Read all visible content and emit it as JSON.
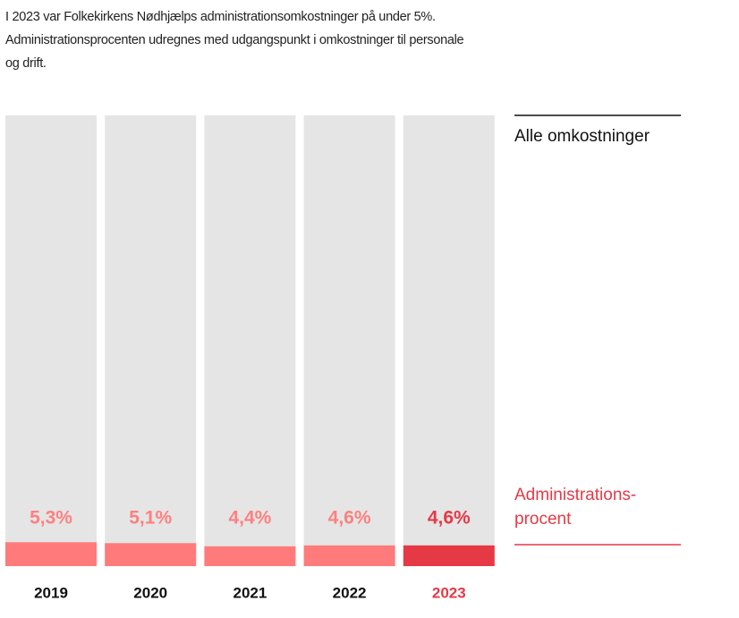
{
  "chart_data": {
    "type": "bar",
    "title": "I 2023 var Folkekirkens Nødhjælps administrationsomkostninger på under 5%. Administrationsprocenten udregnes med udgangspunkt i omkostninger til personale og drift.",
    "categories": [
      "2019",
      "2020",
      "2021",
      "2022",
      "2023"
    ],
    "category_label_colors": [
      "#111111",
      "#111111",
      "#111111",
      "#111111",
      "#e63946"
    ],
    "series": [
      {
        "name": "Alle omkostninger",
        "color": "#e5e5e5",
        "values": [
          100,
          100,
          100,
          100,
          100
        ]
      },
      {
        "name": "Administrations-\nprocent",
        "colors": [
          "#ff7b7b",
          "#ff7b7b",
          "#ff7b7b",
          "#ff7b7b",
          "#e63946"
        ],
        "label_colors": [
          "#ff8080",
          "#ff8080",
          "#ff8080",
          "#ff8080",
          "#e63946"
        ],
        "values": [
          5.3,
          5.1,
          4.4,
          4.6,
          4.6
        ],
        "value_labels": [
          "5,3%",
          "5,1%",
          "4,4%",
          "4,6%",
          "4,6%"
        ]
      }
    ],
    "ylim": [
      0,
      100
    ]
  }
}
